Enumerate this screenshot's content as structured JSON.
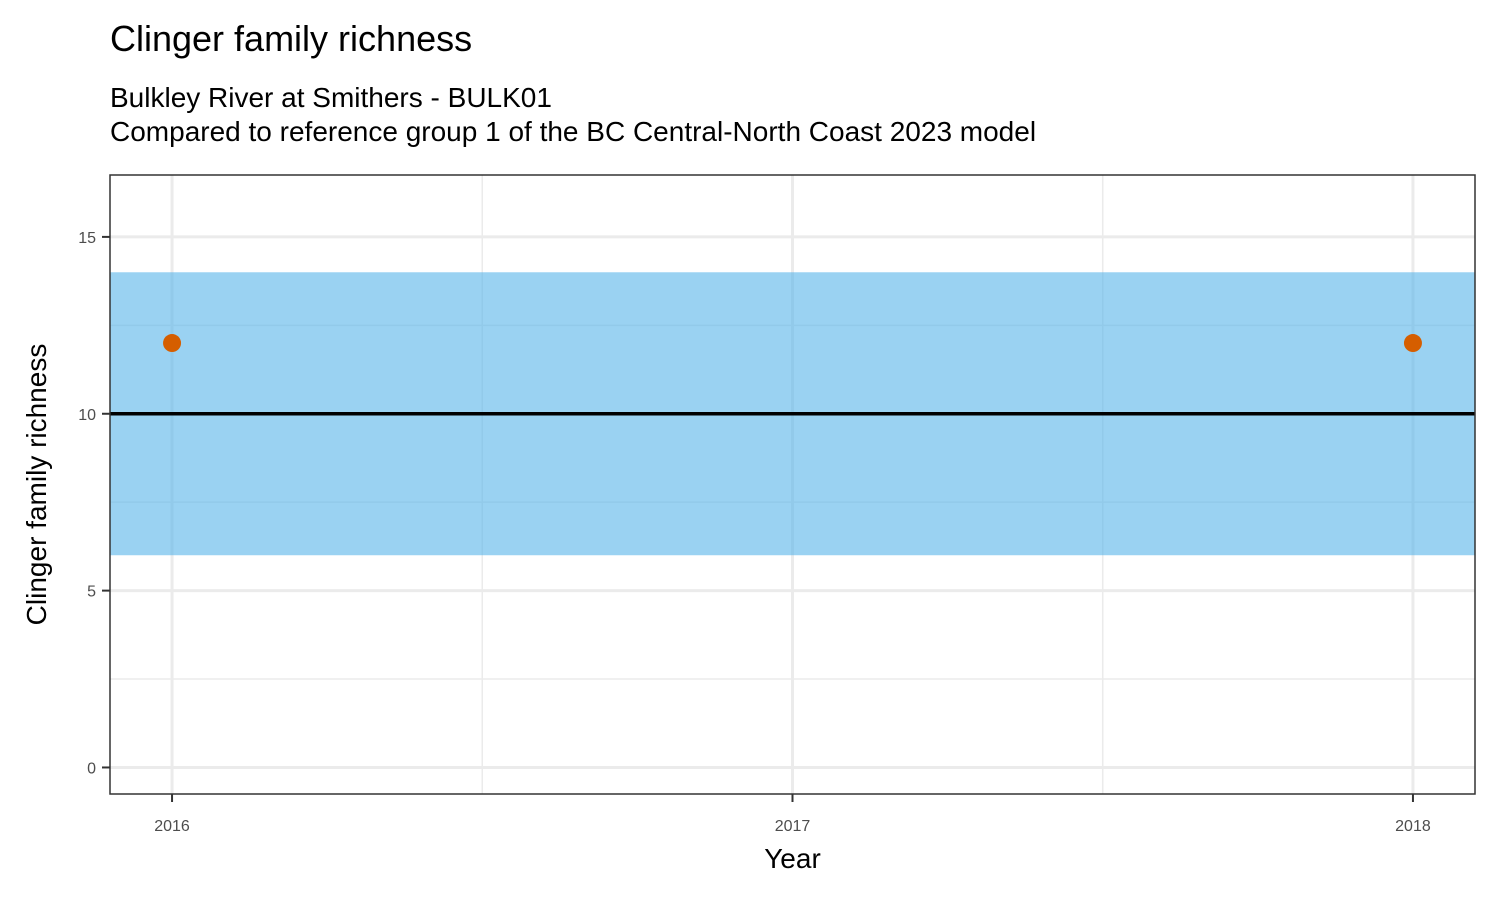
{
  "chart_data": {
    "type": "scatter",
    "title": "Clinger family richness",
    "subtitle_lines": [
      "Bulkley River at Smithers - BULK01",
      "Compared to reference group 1 of the BC Central-North Coast 2023 model"
    ],
    "xlabel": "Year",
    "ylabel": "Clinger family richness",
    "x_ticks": [
      2016,
      2017,
      2018
    ],
    "x_tick_labels": [
      "2016",
      "2017",
      "2018"
    ],
    "y_ticks": [
      0,
      5,
      10,
      15
    ],
    "y_tick_labels": [
      "0",
      "5",
      "10",
      "15"
    ],
    "xlim": [
      2015.9,
      2018.1
    ],
    "ylim": [
      -0.75,
      16.75
    ],
    "reference_band": {
      "low": 6,
      "high": 14,
      "color": "#56B4E9"
    },
    "reference_line": {
      "y": 10,
      "color": "#000000"
    },
    "points": [
      {
        "x": 2016,
        "y": 12
      },
      {
        "x": 2018,
        "y": 12
      }
    ],
    "point_color": "#D55E00",
    "grid": true
  }
}
